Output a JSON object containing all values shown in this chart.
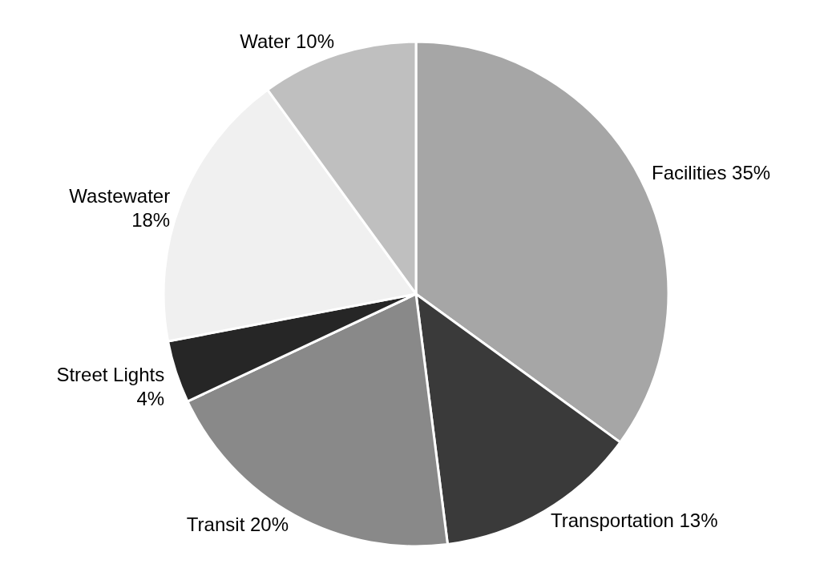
{
  "chart_data": {
    "type": "pie",
    "categories": [
      "Facilities",
      "Transportation",
      "Transit",
      "Street Lights",
      "Wastewater",
      "Water"
    ],
    "values": [
      35,
      13,
      20,
      4,
      18,
      10
    ],
    "value_labels": [
      "35%",
      "13%",
      "20%",
      "4%",
      "18%",
      "10%"
    ],
    "colors": [
      "#a6a6a6",
      "#3a3a3a",
      "#898989",
      "#262626",
      "#f0f0f0",
      "#bfbfbf"
    ]
  }
}
